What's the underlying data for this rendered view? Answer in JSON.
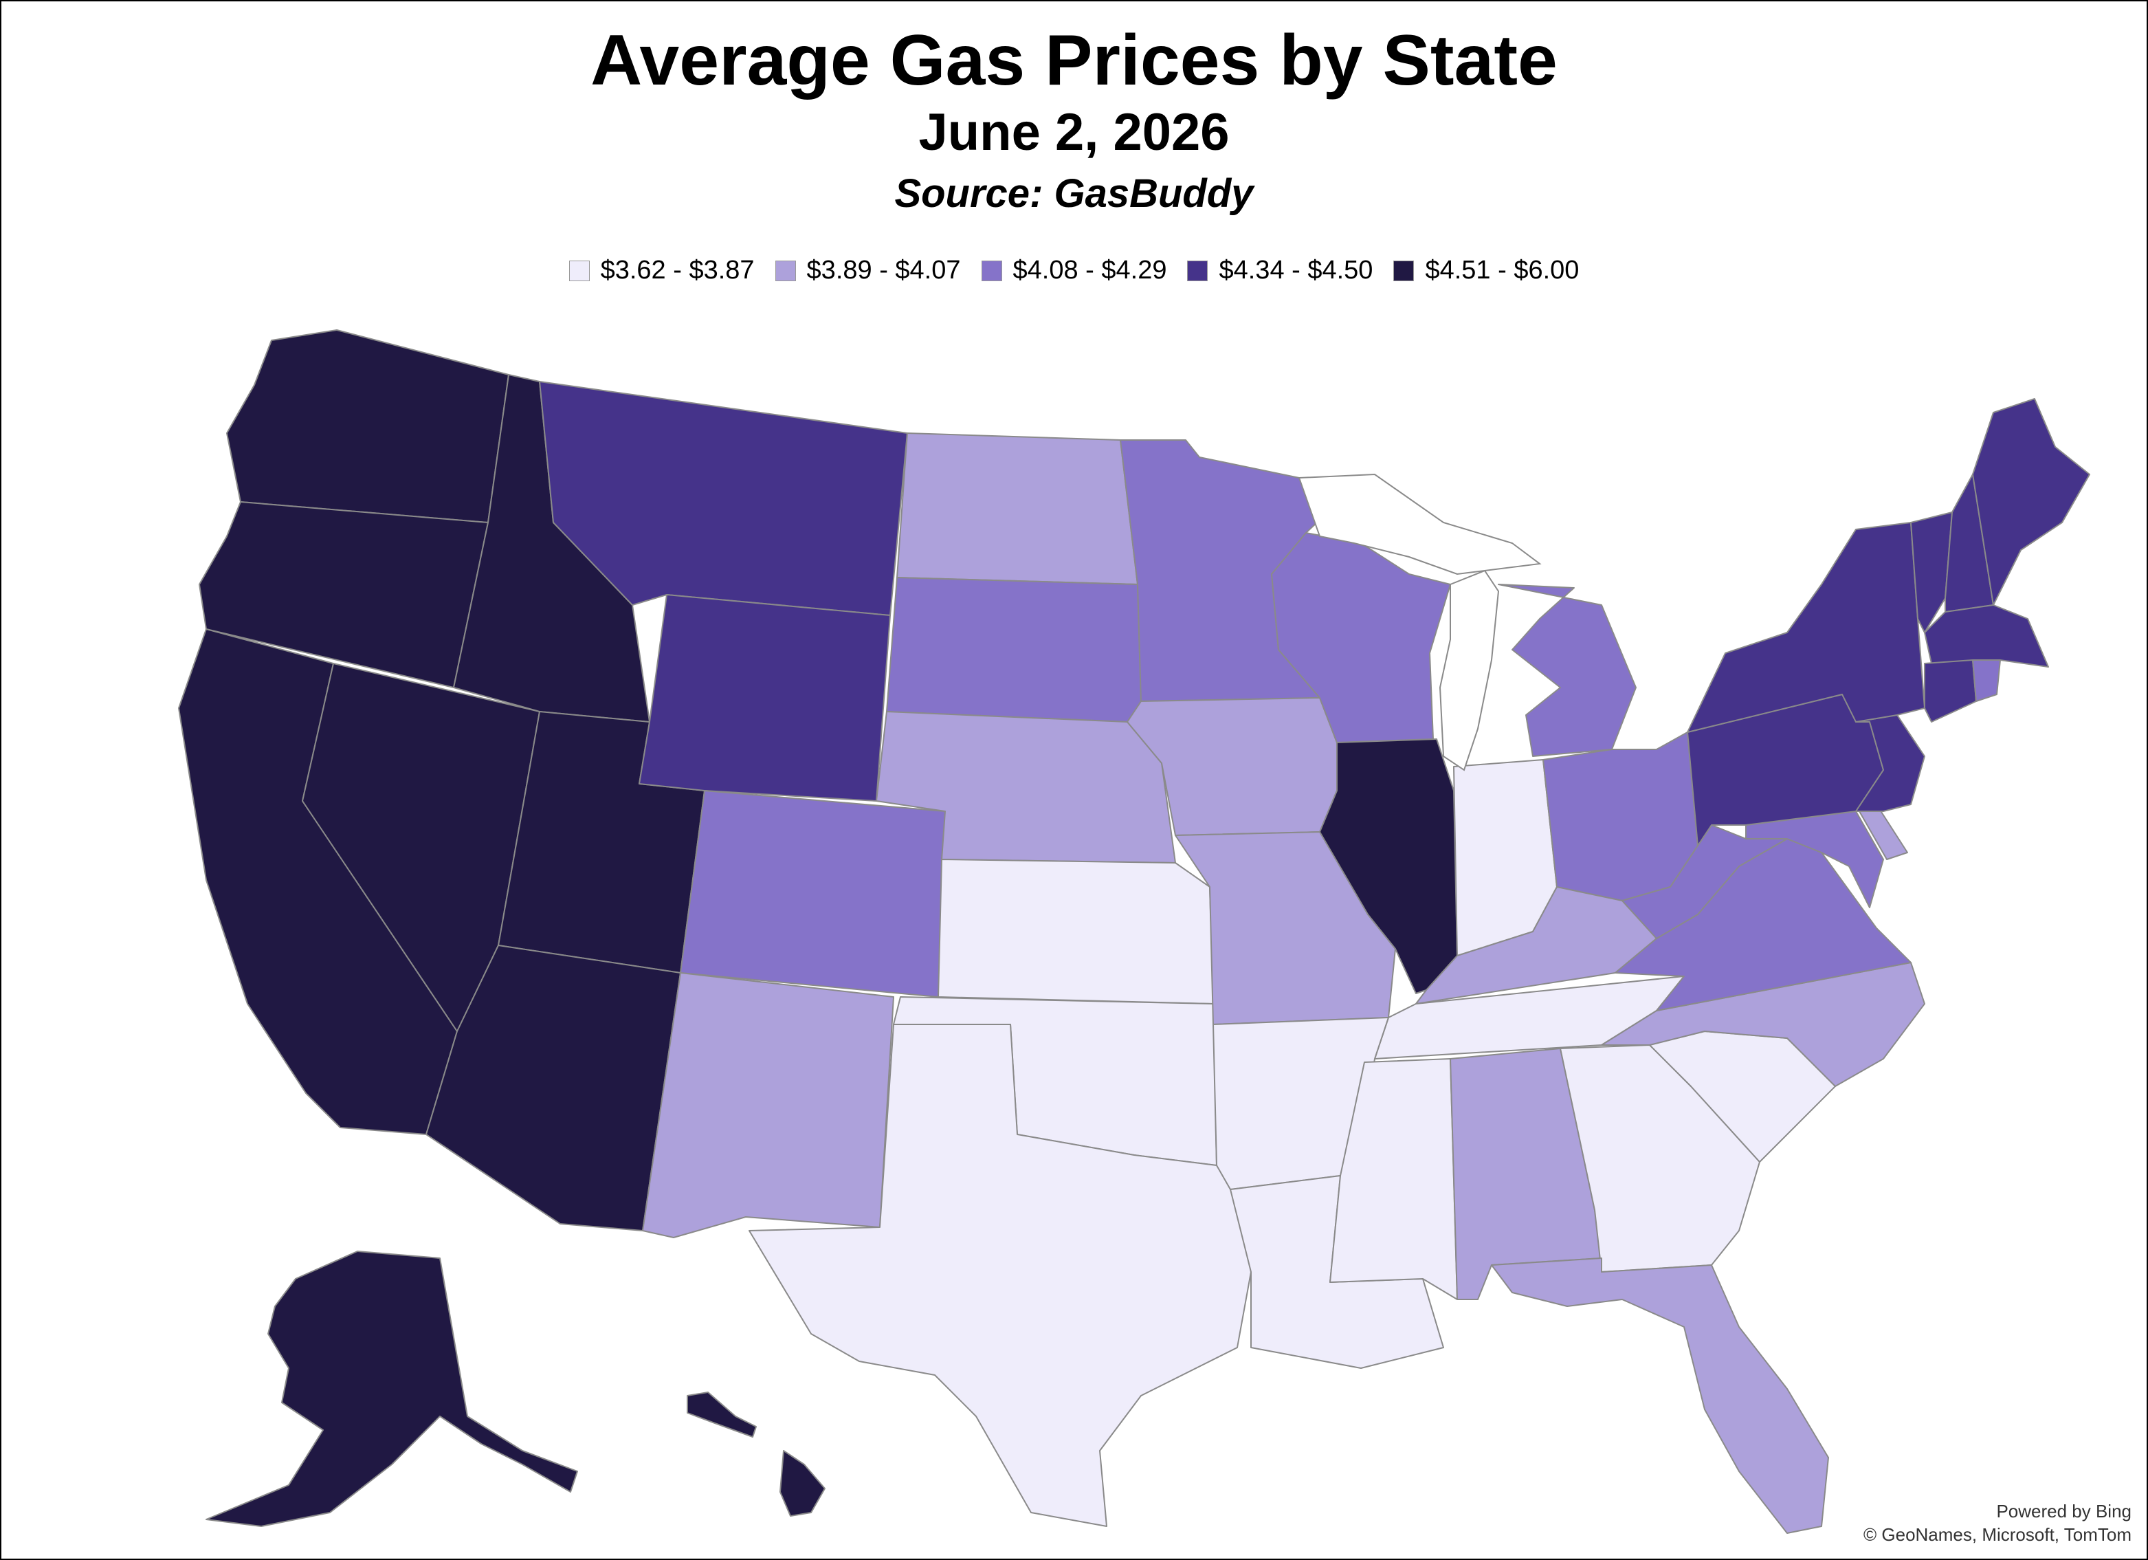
{
  "title": "Average Gas Prices by State",
  "subtitle": "June 2, 2026",
  "source": "Source: GasBuddy",
  "legend": [
    {
      "label": "$3.62 - $3.87",
      "color": "#efedfb"
    },
    {
      "label": "$3.89 - $4.07",
      "color": "#ada1db"
    },
    {
      "label": "$4.08 - $4.29",
      "color": "#8573c9"
    },
    {
      "label": "$4.34 - $4.50",
      "color": "#45338a"
    },
    {
      "label": "$4.51 - $6.00",
      "color": "#201843"
    }
  ],
  "state_bins": {
    "WA": 4,
    "OR": 4,
    "CA": 4,
    "NV": 4,
    "ID": 4,
    "UT": 4,
    "AZ": 4,
    "AK": 4,
    "HI": 4,
    "IL": 4,
    "MT": 3,
    "WY": 3,
    "NY": 3,
    "PA": 3,
    "VT": 3,
    "NH": 3,
    "ME": 3,
    "MA": 3,
    "CT": 3,
    "NJ": 3,
    "MN": 2,
    "WI": 2,
    "MI": 2,
    "OH": 2,
    "SD": 2,
    "CO": 2,
    "WV": 2,
    "VA": 2,
    "MD": 2,
    "RI": 2,
    "ND": 1,
    "NE": 1,
    "IA": 1,
    "MO": 1,
    "NM": 1,
    "KY": 1,
    "NC": 1,
    "AL": 1,
    "FL": 1,
    "DE": 1,
    "KS": 0,
    "OK": 0,
    "TX": 0,
    "AR": 0,
    "LA": 0,
    "MS": 0,
    "TN": 0,
    "GA": 0,
    "SC": 0,
    "IN": 0
  },
  "credits": {
    "line1": "Powered by Bing",
    "line2": "© GeoNames, Microsoft, TomTom"
  }
}
